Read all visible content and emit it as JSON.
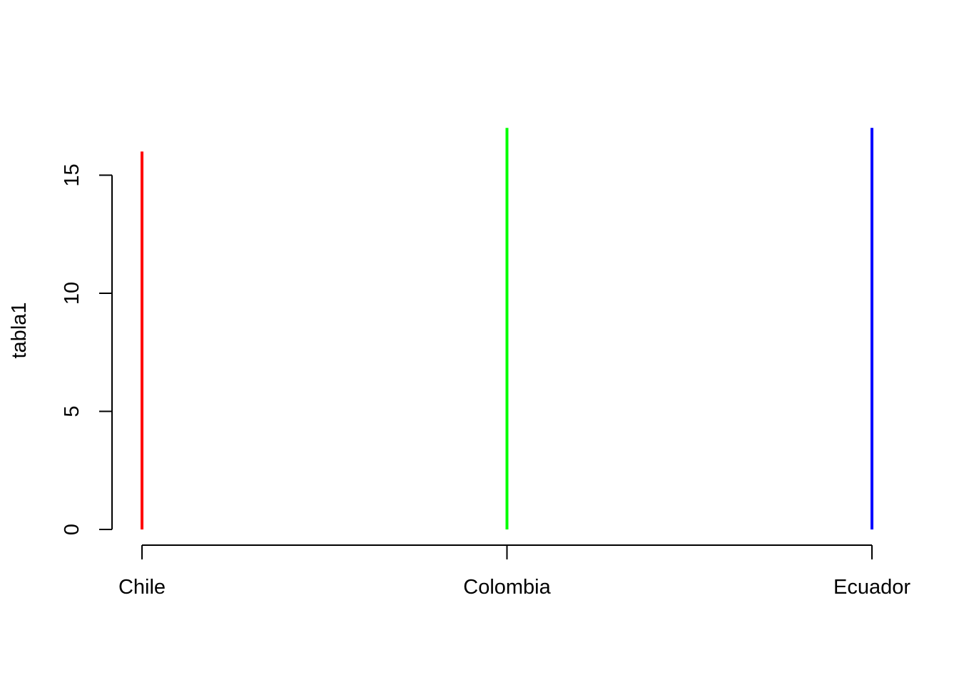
{
  "chart_data": {
    "type": "bar",
    "style": "histogram-lines",
    "categories": [
      "Chile",
      "Colombia",
      "Ecuador"
    ],
    "values": [
      16,
      17,
      17
    ],
    "colors": [
      "#ff0000",
      "#00ff00",
      "#0000ff"
    ],
    "ylabel": "tabla1",
    "xlabel": "",
    "title": "",
    "ylim": [
      0,
      17
    ],
    "yticks": [
      0,
      5,
      10,
      15
    ],
    "grid": false,
    "legend": "none"
  }
}
